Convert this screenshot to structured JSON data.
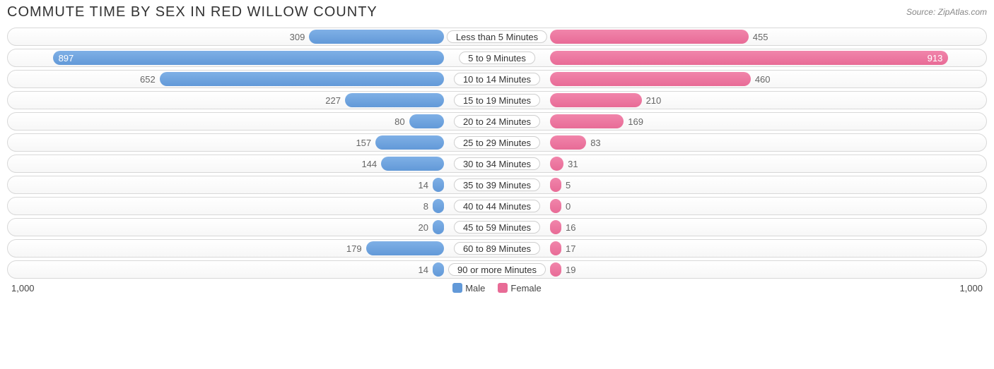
{
  "title": "COMMUTE TIME BY SEX IN RED WILLOW COUNTY",
  "source": "Source: ZipAtlas.com",
  "axis_max": 1000,
  "axis_label_left": "1,000",
  "axis_label_right": "1,000",
  "colors": {
    "male": "#6299d8",
    "female": "#e86b96",
    "track_border": "#d8d8d8",
    "text": "#333333",
    "muted": "#666666"
  },
  "value_inside_threshold": 700,
  "legend": [
    {
      "label": "Male",
      "color": "#6299d8"
    },
    {
      "label": "Female",
      "color": "#e86b96"
    }
  ],
  "rows": [
    {
      "label": "Less than 5 Minutes",
      "male": 309,
      "female": 455
    },
    {
      "label": "5 to 9 Minutes",
      "male": 897,
      "female": 913
    },
    {
      "label": "10 to 14 Minutes",
      "male": 652,
      "female": 460
    },
    {
      "label": "15 to 19 Minutes",
      "male": 227,
      "female": 210
    },
    {
      "label": "20 to 24 Minutes",
      "male": 80,
      "female": 169
    },
    {
      "label": "25 to 29 Minutes",
      "male": 157,
      "female": 83
    },
    {
      "label": "30 to 34 Minutes",
      "male": 144,
      "female": 31
    },
    {
      "label": "35 to 39 Minutes",
      "male": 14,
      "female": 5
    },
    {
      "label": "40 to 44 Minutes",
      "male": 8,
      "female": 0
    },
    {
      "label": "45 to 59 Minutes",
      "male": 20,
      "female": 16
    },
    {
      "label": "60 to 89 Minutes",
      "male": 179,
      "female": 17
    },
    {
      "label": "90 or more Minutes",
      "male": 14,
      "female": 19
    }
  ]
}
